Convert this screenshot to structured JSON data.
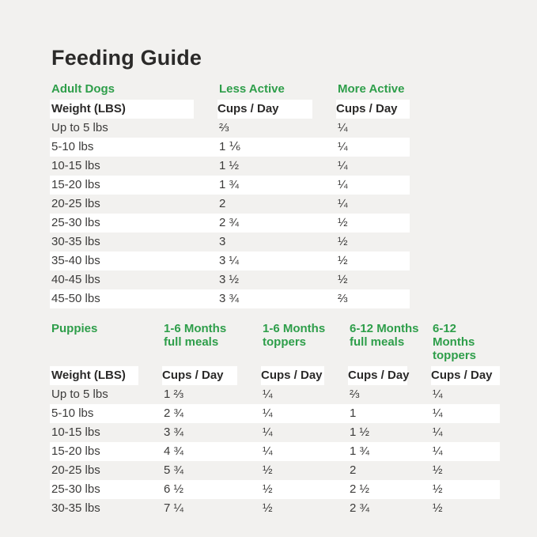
{
  "title": "Feeding Guide",
  "colors": {
    "background": "#f2f1ef",
    "stripe": "#ffffff",
    "accent_green": "#2e9e4a",
    "heading_text": "#2b2a29",
    "body_text": "#3c3b3a"
  },
  "adult_table": {
    "section_label": "Adult Dogs",
    "activity_headers": [
      "Less Active",
      "More Active"
    ],
    "weight_header": "Weight (LBS)",
    "cups_header": "Cups / Day",
    "rows": [
      {
        "weight": "Up to 5 lbs",
        "less_active": "⅔",
        "more_active": "¼"
      },
      {
        "weight": "5-10 lbs",
        "less_active": "1 ⅙",
        "more_active": "¼"
      },
      {
        "weight": "10-15 lbs",
        "less_active": "1 ½",
        "more_active": "¼"
      },
      {
        "weight": "15-20 lbs",
        "less_active": "1 ¾",
        "more_active": "¼"
      },
      {
        "weight": "20-25 lbs",
        "less_active": "2",
        "more_active": "¼"
      },
      {
        "weight": "25-30 lbs",
        "less_active": "2 ¾",
        "more_active": "½"
      },
      {
        "weight": "30-35 lbs",
        "less_active": "3",
        "more_active": "½"
      },
      {
        "weight": "35-40 lbs",
        "less_active": "3 ¼",
        "more_active": "½"
      },
      {
        "weight": "40-45 lbs",
        "less_active": "3 ½",
        "more_active": "½"
      },
      {
        "weight": "45-50 lbs",
        "less_active": "3 ¾",
        "more_active": "⅔"
      }
    ]
  },
  "puppies_table": {
    "section_label": "Puppies",
    "age_headers": [
      {
        "line1": "1-6 Months",
        "line2": "full meals"
      },
      {
        "line1": "1-6 Months",
        "line2": "toppers"
      },
      {
        "line1": "6-12 Months",
        "line2": "full meals"
      },
      {
        "line1": "6-12 Months",
        "line2": "toppers"
      }
    ],
    "weight_header": "Weight (LBS)",
    "cups_header": "Cups / Day",
    "rows": [
      {
        "weight": "Up to 5 lbs",
        "meals_1_6": "1 ⅔",
        "toppers_1_6": "¼",
        "meals_6_12": "⅔",
        "toppers_6_12": "¼"
      },
      {
        "weight": "5-10 lbs",
        "meals_1_6": "2 ¾",
        "toppers_1_6": "¼",
        "meals_6_12": "1",
        "toppers_6_12": "¼"
      },
      {
        "weight": "10-15 lbs",
        "meals_1_6": "3 ¾",
        "toppers_1_6": "¼",
        "meals_6_12": "1 ½",
        "toppers_6_12": "¼"
      },
      {
        "weight": "15-20 lbs",
        "meals_1_6": "4 ¾",
        "toppers_1_6": "¼",
        "meals_6_12": "1 ¾",
        "toppers_6_12": "¼"
      },
      {
        "weight": "20-25 lbs",
        "meals_1_6": "5 ¾",
        "toppers_1_6": "½",
        "meals_6_12": "2",
        "toppers_6_12": "½"
      },
      {
        "weight": "25-30 lbs",
        "meals_1_6": "6 ½",
        "toppers_1_6": "½",
        "meals_6_12": "2 ½",
        "toppers_6_12": "½"
      },
      {
        "weight": "30-35 lbs",
        "meals_1_6": "7 ¼",
        "toppers_1_6": "½",
        "meals_6_12": "2 ¾",
        "toppers_6_12": "½"
      }
    ]
  }
}
